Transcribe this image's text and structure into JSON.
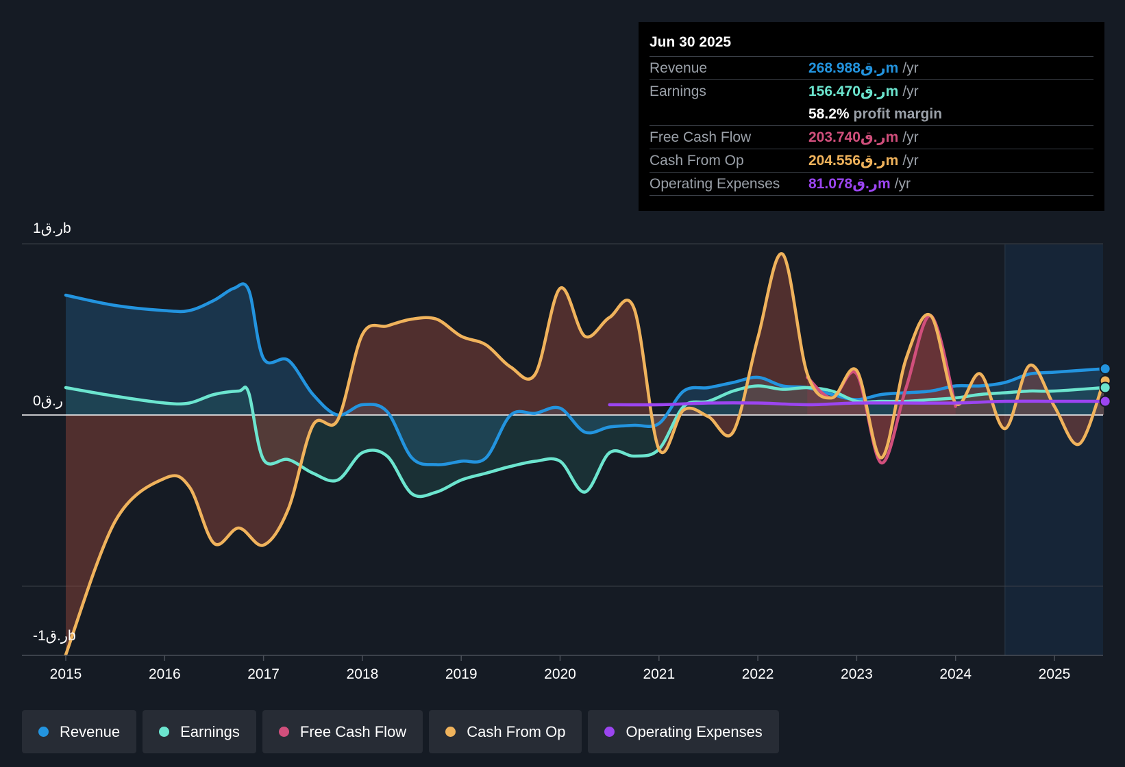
{
  "tooltip": {
    "date": "Jun 30 2025",
    "rows": [
      {
        "label": "Revenue",
        "value": "268.988ر.قm",
        "unit": "/yr",
        "color": "#2394df"
      },
      {
        "label": "Earnings",
        "value": "156.470ر.قm",
        "unit": "/yr",
        "color": "#6ce5cf"
      },
      {
        "label": "",
        "value": "58.2%",
        "unit": "profit margin",
        "color": "#ffffff"
      },
      {
        "label": "Free Cash Flow",
        "value": "203.740ر.قm",
        "unit": "/yr",
        "color": "#d14f7c"
      },
      {
        "label": "Cash From Op",
        "value": "204.556ر.قm",
        "unit": "/yr",
        "color": "#f0b35c"
      },
      {
        "label": "Operating Expenses",
        "value": "81.078ر.قm",
        "unit": "/yr",
        "color": "#9b45f0"
      }
    ]
  },
  "legend": [
    {
      "label": "Revenue",
      "color": "#2394df"
    },
    {
      "label": "Earnings",
      "color": "#6ce5cf"
    },
    {
      "label": "Free Cash Flow",
      "color": "#d14f7c"
    },
    {
      "label": "Cash From Op",
      "color": "#f0b35c"
    },
    {
      "label": "Operating Expenses",
      "color": "#9b45f0"
    }
  ],
  "chart_data": {
    "type": "line",
    "title": "",
    "y_unit": "ر.ق",
    "ylim": [
      -1.4,
      1.0
    ],
    "xlim": [
      2014.55,
      2025.5
    ],
    "y_ticks": [
      {
        "value": 1,
        "label": "1ر.قb"
      },
      {
        "value": 0,
        "label": "0ر.ق"
      },
      {
        "value": -1.3,
        "label": "-1ر.قb"
      }
    ],
    "x_ticks": [
      2015,
      2016,
      2017,
      2018,
      2019,
      2020,
      2021,
      2022,
      2023,
      2024,
      2025
    ],
    "x_tick_labels": [
      "2015",
      "2016",
      "2017",
      "2018",
      "2019",
      "2020",
      "2021",
      "2022",
      "2023",
      "2024",
      "2025"
    ],
    "forecast_start": 2024.5,
    "series": [
      {
        "name": "Revenue",
        "color": "#2394df",
        "points": [
          [
            2015,
            0.7
          ],
          [
            2015.5,
            0.64
          ],
          [
            2016,
            0.61
          ],
          [
            2016.25,
            0.61
          ],
          [
            2016.5,
            0.67
          ],
          [
            2016.7,
            0.74
          ],
          [
            2016.85,
            0.73
          ],
          [
            2017,
            0.33
          ],
          [
            2017.25,
            0.32
          ],
          [
            2017.5,
            0.12
          ],
          [
            2017.75,
            0.0
          ],
          [
            2018,
            0.06
          ],
          [
            2018.25,
            0.02
          ],
          [
            2018.5,
            -0.25
          ],
          [
            2018.75,
            -0.29
          ],
          [
            2019,
            -0.27
          ],
          [
            2019.25,
            -0.25
          ],
          [
            2019.5,
            0.0
          ],
          [
            2019.75,
            0.01
          ],
          [
            2020,
            0.04
          ],
          [
            2020.25,
            -0.1
          ],
          [
            2020.5,
            -0.07
          ],
          [
            2020.75,
            -0.06
          ],
          [
            2021,
            -0.05
          ],
          [
            2021.25,
            0.14
          ],
          [
            2021.5,
            0.16
          ],
          [
            2021.75,
            0.19
          ],
          [
            2022,
            0.22
          ],
          [
            2022.25,
            0.17
          ],
          [
            2022.5,
            0.16
          ],
          [
            2022.75,
            0.12
          ],
          [
            2023,
            0.09
          ],
          [
            2023.25,
            0.12
          ],
          [
            2023.5,
            0.13
          ],
          [
            2023.75,
            0.14
          ],
          [
            2024,
            0.17
          ],
          [
            2024.25,
            0.17
          ],
          [
            2024.5,
            0.19
          ],
          [
            2024.75,
            0.24
          ],
          [
            2025,
            0.25
          ],
          [
            2025.5,
            0.27
          ]
        ]
      },
      {
        "name": "Earnings",
        "color": "#6ce5cf",
        "points": [
          [
            2015,
            0.16
          ],
          [
            2015.5,
            0.11
          ],
          [
            2016,
            0.07
          ],
          [
            2016.25,
            0.07
          ],
          [
            2016.5,
            0.12
          ],
          [
            2016.75,
            0.14
          ],
          [
            2016.85,
            0.13
          ],
          [
            2017,
            -0.26
          ],
          [
            2017.25,
            -0.26
          ],
          [
            2017.5,
            -0.34
          ],
          [
            2017.75,
            -0.38
          ],
          [
            2018,
            -0.22
          ],
          [
            2018.25,
            -0.24
          ],
          [
            2018.5,
            -0.46
          ],
          [
            2018.75,
            -0.45
          ],
          [
            2019,
            -0.38
          ],
          [
            2019.25,
            -0.34
          ],
          [
            2019.5,
            -0.3
          ],
          [
            2019.75,
            -0.27
          ],
          [
            2020,
            -0.27
          ],
          [
            2020.25,
            -0.45
          ],
          [
            2020.5,
            -0.22
          ],
          [
            2020.75,
            -0.24
          ],
          [
            2021,
            -0.2
          ],
          [
            2021.25,
            0.05
          ],
          [
            2021.5,
            0.08
          ],
          [
            2021.75,
            0.14
          ],
          [
            2022,
            0.17
          ],
          [
            2022.25,
            0.15
          ],
          [
            2022.5,
            0.16
          ],
          [
            2022.75,
            0.14
          ],
          [
            2023,
            0.08
          ],
          [
            2023.25,
            0.08
          ],
          [
            2023.5,
            0.08
          ],
          [
            2023.75,
            0.09
          ],
          [
            2024,
            0.1
          ],
          [
            2024.25,
            0.12
          ],
          [
            2024.5,
            0.13
          ],
          [
            2024.75,
            0.14
          ],
          [
            2025,
            0.14
          ],
          [
            2025.5,
            0.16
          ]
        ]
      },
      {
        "name": "Free Cash Flow",
        "color": "#d14f7c",
        "points": [
          [
            2022.5,
            0.22
          ],
          [
            2022.75,
            0.1
          ],
          [
            2023,
            0.24
          ],
          [
            2023.25,
            -0.28
          ],
          [
            2023.5,
            0.16
          ],
          [
            2023.75,
            0.58
          ],
          [
            2024,
            0.05
          ]
        ]
      },
      {
        "name": "Cash From Op",
        "color": "#f0b35c",
        "points": [
          [
            2015,
            -1.4
          ],
          [
            2015.5,
            -0.62
          ],
          [
            2016,
            -0.37
          ],
          [
            2016.25,
            -0.42
          ],
          [
            2016.5,
            -0.75
          ],
          [
            2016.75,
            -0.66
          ],
          [
            2017,
            -0.76
          ],
          [
            2017.25,
            -0.55
          ],
          [
            2017.5,
            -0.06
          ],
          [
            2017.75,
            -0.03
          ],
          [
            2018,
            0.47
          ],
          [
            2018.25,
            0.52
          ],
          [
            2018.5,
            0.56
          ],
          [
            2018.75,
            0.56
          ],
          [
            2019,
            0.46
          ],
          [
            2019.25,
            0.41
          ],
          [
            2019.5,
            0.28
          ],
          [
            2019.75,
            0.24
          ],
          [
            2020,
            0.74
          ],
          [
            2020.25,
            0.46
          ],
          [
            2020.5,
            0.57
          ],
          [
            2020.75,
            0.62
          ],
          [
            2021,
            -0.2
          ],
          [
            2021.25,
            0.03
          ],
          [
            2021.5,
            -0.01
          ],
          [
            2021.75,
            -0.1
          ],
          [
            2022,
            0.45
          ],
          [
            2022.25,
            0.94
          ],
          [
            2022.5,
            0.24
          ],
          [
            2022.75,
            0.1
          ],
          [
            2023,
            0.26
          ],
          [
            2023.25,
            -0.25
          ],
          [
            2023.5,
            0.33
          ],
          [
            2023.75,
            0.58
          ],
          [
            2024,
            0.07
          ],
          [
            2024.25,
            0.24
          ],
          [
            2024.5,
            -0.08
          ],
          [
            2024.75,
            0.29
          ],
          [
            2025,
            0.05
          ],
          [
            2025.25,
            -0.17
          ],
          [
            2025.5,
            0.2
          ]
        ]
      },
      {
        "name": "Operating Expenses",
        "color": "#9b45f0",
        "points": [
          [
            2020.5,
            0.06
          ],
          [
            2021,
            0.06
          ],
          [
            2021.5,
            0.07
          ],
          [
            2022,
            0.07
          ],
          [
            2022.5,
            0.06
          ],
          [
            2023,
            0.07
          ],
          [
            2023.5,
            0.07
          ],
          [
            2024,
            0.07
          ],
          [
            2024.5,
            0.08
          ],
          [
            2025,
            0.08
          ],
          [
            2025.5,
            0.08
          ]
        ]
      }
    ]
  }
}
